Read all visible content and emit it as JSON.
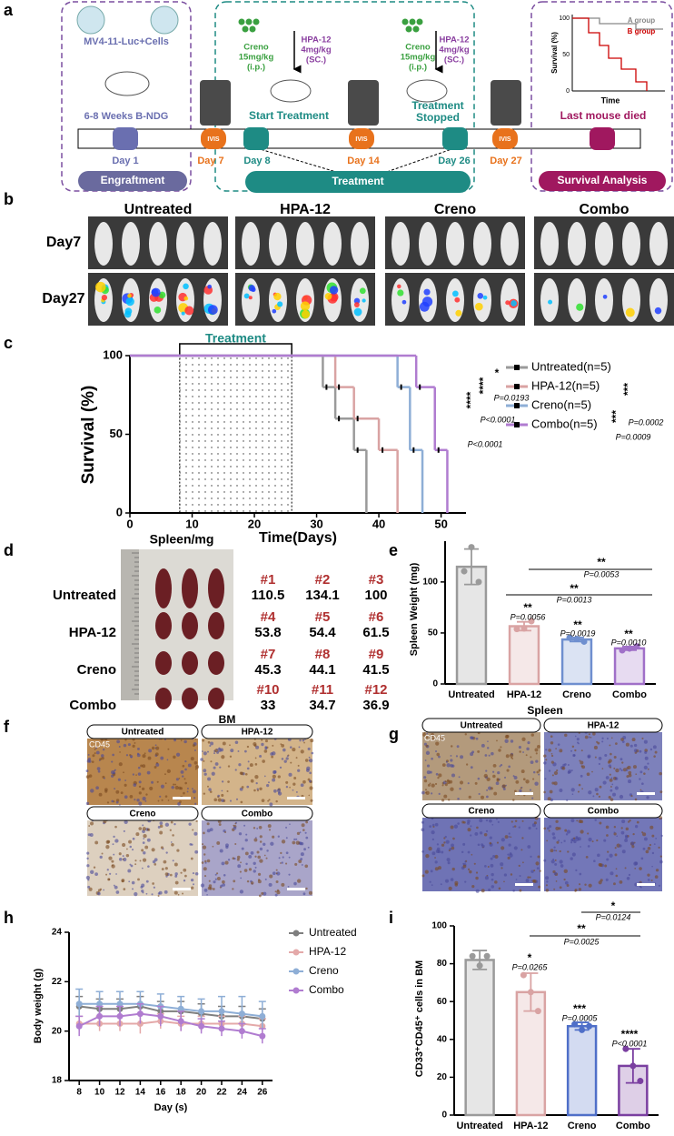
{
  "panel_a": {
    "label": "a",
    "cells": "MV4-11-Luc+Cells",
    "mice": "6-8 Weeks B-NDG",
    "ivis": "IVIS",
    "days": [
      "Day 1",
      "Day 7",
      "Day 8",
      "Day 14",
      "Day 26",
      "Day 27"
    ],
    "creno": [
      "Creno",
      "15mg/kg",
      "(i.p.)"
    ],
    "hpa": [
      "HPA-12",
      "4mg/kg",
      "(SC.)"
    ],
    "start": "Start Treatment",
    "stopped": [
      "Treatment",
      "Stopped"
    ],
    "stages": [
      "Engraftment",
      "Treatment",
      "Survival Analysis"
    ],
    "last": "Last mouse died",
    "inset": {
      "ylabel": "Survival (%)",
      "xlabel": "Time",
      "yticks": [
        100,
        50,
        0
      ],
      "groups": [
        "A group",
        "B group"
      ]
    }
  },
  "panel_b": {
    "label": "b",
    "groups": [
      "Untreated",
      "HPA-12",
      "Creno",
      "Combo"
    ],
    "days": [
      "Day7",
      "Day27"
    ]
  },
  "panel_d": {
    "label": "d",
    "title": "Spleen/mg",
    "groups": [
      "Untreated",
      "HPA-12",
      "Creno",
      "Combo"
    ],
    "ids": [
      [
        "#1",
        "#2",
        "#3"
      ],
      [
        "#4",
        "#5",
        "#6"
      ],
      [
        "#7",
        "#8",
        "#9"
      ],
      [
        "#10",
        "#11",
        "#12"
      ]
    ],
    "weights": [
      [
        110.5,
        134.1,
        100
      ],
      [
        53.8,
        54.4,
        61.5
      ],
      [
        45.3,
        44.1,
        41.5
      ],
      [
        33,
        34.7,
        36.9
      ]
    ]
  },
  "panel_f": {
    "label": "f",
    "title": "BM",
    "marker": "CD45",
    "groups": [
      "Untreated",
      "HPA-12",
      "Creno",
      "Combo"
    ]
  },
  "panel_g": {
    "label": "g",
    "title": "Spleen",
    "marker": "CD45",
    "groups": [
      "Untreated",
      "HPA-12",
      "Creno",
      "Combo"
    ]
  },
  "chart_data": [
    {
      "type": "survival",
      "panel_label": "c",
      "xlabel": "Time(Days)",
      "ylabel": "Survival (%)",
      "treatment_label": "Treatment",
      "treatment_span": [
        8,
        26
      ],
      "xlim": [
        0,
        54
      ],
      "ylim": [
        0,
        100
      ],
      "xticks": [
        0,
        10,
        20,
        30,
        40,
        50
      ],
      "yticks": [
        0,
        50,
        100
      ],
      "series": [
        {
          "name": "Untreated(n=5)",
          "color": "#9a9a9a",
          "x": [
            0,
            31,
            33,
            36,
            38
          ],
          "values": [
            100,
            80,
            60,
            40,
            0
          ]
        },
        {
          "name": "HPA-12(n=5)",
          "color": "#d9a3a3",
          "x": [
            0,
            33,
            36,
            40,
            43
          ],
          "values": [
            100,
            80,
            60,
            40,
            0
          ]
        },
        {
          "name": "Creno(n=5)",
          "color": "#8eaed6",
          "x": [
            0,
            43,
            45,
            47
          ],
          "values": [
            100,
            80,
            40,
            0
          ]
        },
        {
          "name": "Combo(n=5)",
          "color": "#b07cd0",
          "x": [
            0,
            46,
            49,
            51
          ],
          "values": [
            100,
            80,
            40,
            0
          ]
        }
      ],
      "annotations": [
        "*",
        "P=0.0193",
        "****",
        "P<0.0001",
        "****",
        "P<0.0001",
        "***",
        "P=0.0002",
        "***",
        "P=0.0009"
      ]
    },
    {
      "type": "bar",
      "panel_label": "e",
      "ylabel": "Spleen Weight (mg)",
      "categories": [
        "Untreated",
        "HPA-12",
        "Creno",
        "Combo"
      ],
      "values": [
        114.9,
        56.6,
        43.6,
        34.9
      ],
      "errors": [
        17.4,
        4.3,
        2.0,
        1.8
      ],
      "points": [
        [
          110.5,
          134.1,
          100
        ],
        [
          53.8,
          54.4,
          61.5
        ],
        [
          45.3,
          44.1,
          41.5
        ],
        [
          33,
          34.7,
          36.9
        ]
      ],
      "colors": [
        "#9a9a9a",
        "#d9a3a3",
        "#6f8fcf",
        "#a070c8"
      ],
      "ylim": [
        0,
        140
      ],
      "yticks": [
        0,
        50,
        100
      ],
      "annotations": [
        "**",
        "P=0.0056",
        "**",
        "P=0.0019",
        "**",
        "P=0.0010",
        "**",
        "P=0.0053",
        "**",
        "P=0.0013"
      ]
    },
    {
      "type": "line",
      "panel_label": "h",
      "xlabel": "Day (s)",
      "ylabel": "Body weight (g)",
      "x": [
        8,
        10,
        12,
        14,
        16,
        18,
        20,
        22,
        24,
        26
      ],
      "xlim": [
        7,
        27
      ],
      "xticks": [
        8,
        10,
        12,
        14,
        16,
        18,
        20,
        22,
        24,
        26
      ],
      "ylim": [
        18,
        24
      ],
      "yticks": [
        18,
        20,
        22,
        24
      ],
      "series": [
        {
          "name": "Untreated",
          "color": "#7f7f7f",
          "values": [
            21.0,
            20.9,
            20.9,
            21.0,
            20.8,
            20.8,
            20.7,
            20.6,
            20.6,
            20.5
          ],
          "errors": [
            0.4,
            0.4,
            0.4,
            0.4,
            0.4,
            0.4,
            0.4,
            0.4,
            0.4,
            0.4
          ]
        },
        {
          "name": "HPA-12",
          "color": "#e4a9a9",
          "values": [
            20.3,
            20.3,
            20.3,
            20.3,
            20.4,
            20.3,
            20.3,
            20.3,
            20.3,
            20.2
          ],
          "errors": [
            0.3,
            0.3,
            0.3,
            0.4,
            0.3,
            0.3,
            0.3,
            0.3,
            0.3,
            0.3
          ]
        },
        {
          "name": "Creno",
          "color": "#8eaed6",
          "values": [
            21.1,
            21.1,
            21.1,
            21.1,
            21.0,
            20.9,
            20.8,
            20.8,
            20.7,
            20.6
          ],
          "errors": [
            0.6,
            0.5,
            0.5,
            0.5,
            0.5,
            0.5,
            0.5,
            0.6,
            0.7,
            0.6
          ]
        },
        {
          "name": "Combo",
          "color": "#b07cd0",
          "values": [
            20.2,
            20.6,
            20.6,
            20.7,
            20.6,
            20.4,
            20.2,
            20.1,
            20.0,
            19.8
          ],
          "errors": [
            0.4,
            0.4,
            0.4,
            0.4,
            0.4,
            0.4,
            0.3,
            0.3,
            0.3,
            0.3
          ]
        }
      ]
    },
    {
      "type": "bar",
      "panel_label": "i",
      "ylabel": "CD33⁺CD45⁺ cells in BM",
      "categories": [
        "Untreated",
        "HPA-12",
        "Creno",
        "Combo"
      ],
      "values": [
        82,
        65,
        47,
        26
      ],
      "errors": [
        5,
        10,
        2,
        9
      ],
      "points": [
        [
          84,
          79,
          84
        ],
        [
          74,
          65,
          55
        ],
        [
          48,
          45,
          47
        ],
        [
          35,
          26,
          18
        ]
      ],
      "colors": [
        "#9a9a9a",
        "#d9a3a3",
        "#4f6fc8",
        "#7a3fa0"
      ],
      "ylim": [
        0,
        100
      ],
      "yticks": [
        0,
        20,
        40,
        60,
        80,
        100
      ],
      "annotations": [
        "*",
        "P=0.0265",
        "***",
        "P=0.0005",
        "****",
        "P<0.0001",
        "**",
        "P=0.0025",
        "*",
        "P=0.0124"
      ]
    }
  ]
}
